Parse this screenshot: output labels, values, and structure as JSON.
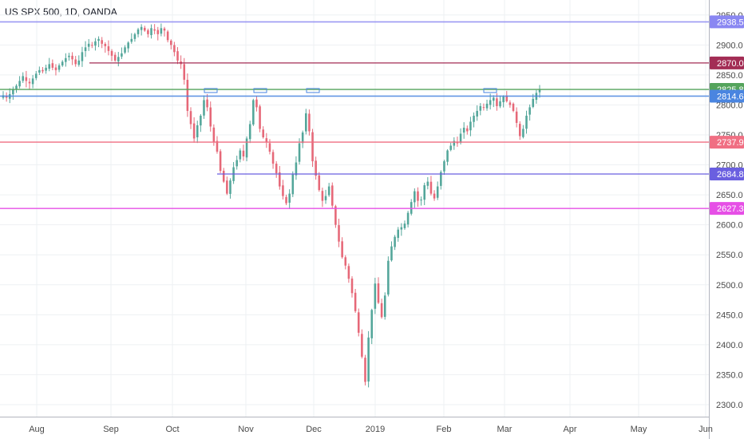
{
  "chart_data": {
    "type": "candlestick",
    "title": "US SPX 500, 1D, OANDA",
    "xlabel": "",
    "ylabel": "",
    "ylim": [
      2280,
      2975
    ],
    "y_ticks": [
      2300,
      2350,
      2400,
      2450,
      2500,
      2550,
      2600,
      2650,
      2700,
      2750,
      2800,
      2850,
      2900,
      2950
    ],
    "y_tick_labels": [
      "2300.0",
      "2350.0",
      "2400.0",
      "2450.0",
      "2500.0",
      "2550.0",
      "2600.0",
      "2650.0",
      "2700.0",
      "2750.0",
      "2800.0",
      "2850.0",
      "2900.0",
      "2950.0"
    ],
    "x_ticks": [
      "Aug",
      "Sep",
      "Oct",
      "Nov",
      "Dec",
      "2019",
      "Feb",
      "Mar",
      "Apr",
      "May",
      "Jun"
    ],
    "grid": true,
    "colors": {
      "up": "#53a69a",
      "down": "#e66878",
      "grid": "#eef0f3",
      "axis": "#b2b5be"
    },
    "horizontal_levels": [
      {
        "label": "2938.5",
        "value": 2938.5,
        "color": "#8a87f2"
      },
      {
        "label": "2870.0",
        "value": 2870.0,
        "color": "#a32d55"
      },
      {
        "label": "2825.8",
        "value": 2825.8,
        "color": "#55a45c"
      },
      {
        "label": "2814.6",
        "value": 2814.6,
        "color": "#4a85e0"
      },
      {
        "label": "2737.9",
        "value": 2737.9,
        "color": "#f06f83"
      },
      {
        "label": "2684.8",
        "value": 2684.8,
        "color": "#6a5fe0"
      },
      {
        "label": "2627.3",
        "value": 2627.3,
        "color": "#e64fe6"
      }
    ],
    "segment_levels": [
      {
        "value": 2870.0,
        "from": "Aug",
        "to_index": 9.8,
        "color": "#a32d55"
      },
      {
        "value": 2684.8,
        "from_index": 2.6,
        "color": "#6a5fe0"
      }
    ],
    "closes": [
      2816,
      2812,
      2818,
      2826,
      2832,
      2840,
      2848,
      2840,
      2836,
      2844,
      2852,
      2858,
      2856,
      2862,
      2868,
      2862,
      2858,
      2866,
      2872,
      2878,
      2882,
      2876,
      2868,
      2874,
      2888,
      2896,
      2902,
      2900,
      2906,
      2910,
      2902,
      2898,
      2890,
      2882,
      2874,
      2880,
      2886,
      2896,
      2904,
      2910,
      2918,
      2926,
      2930,
      2924,
      2918,
      2928,
      2924,
      2918,
      2928,
      2924,
      2908,
      2900,
      2888,
      2874,
      2868,
      2842,
      2790,
      2768,
      2744,
      2766,
      2782,
      2808,
      2796,
      2764,
      2738,
      2722,
      2690,
      2672,
      2652,
      2674,
      2696,
      2708,
      2724,
      2714,
      2744,
      2768,
      2808,
      2796,
      2760,
      2746,
      2738,
      2722,
      2702,
      2686,
      2664,
      2648,
      2636,
      2652,
      2684,
      2704,
      2736,
      2754,
      2786,
      2756,
      2706,
      2682,
      2658,
      2640,
      2648,
      2664,
      2632,
      2600,
      2572,
      2546,
      2532,
      2510,
      2486,
      2456,
      2420,
      2380,
      2338,
      2412,
      2458,
      2502,
      2470,
      2446,
      2482,
      2540,
      2564,
      2580,
      2592,
      2596,
      2602,
      2620,
      2638,
      2656,
      2640,
      2642,
      2666,
      2672,
      2652,
      2644,
      2664,
      2688,
      2706,
      2724,
      2732,
      2740,
      2736,
      2752,
      2762,
      2756,
      2772,
      2782,
      2790,
      2798,
      2796,
      2802,
      2808,
      2812,
      2798,
      2806,
      2814,
      2806,
      2800,
      2790,
      2770,
      2748,
      2760,
      2782,
      2796,
      2810,
      2820,
      2826
    ],
    "last_price": 2825.8
  }
}
